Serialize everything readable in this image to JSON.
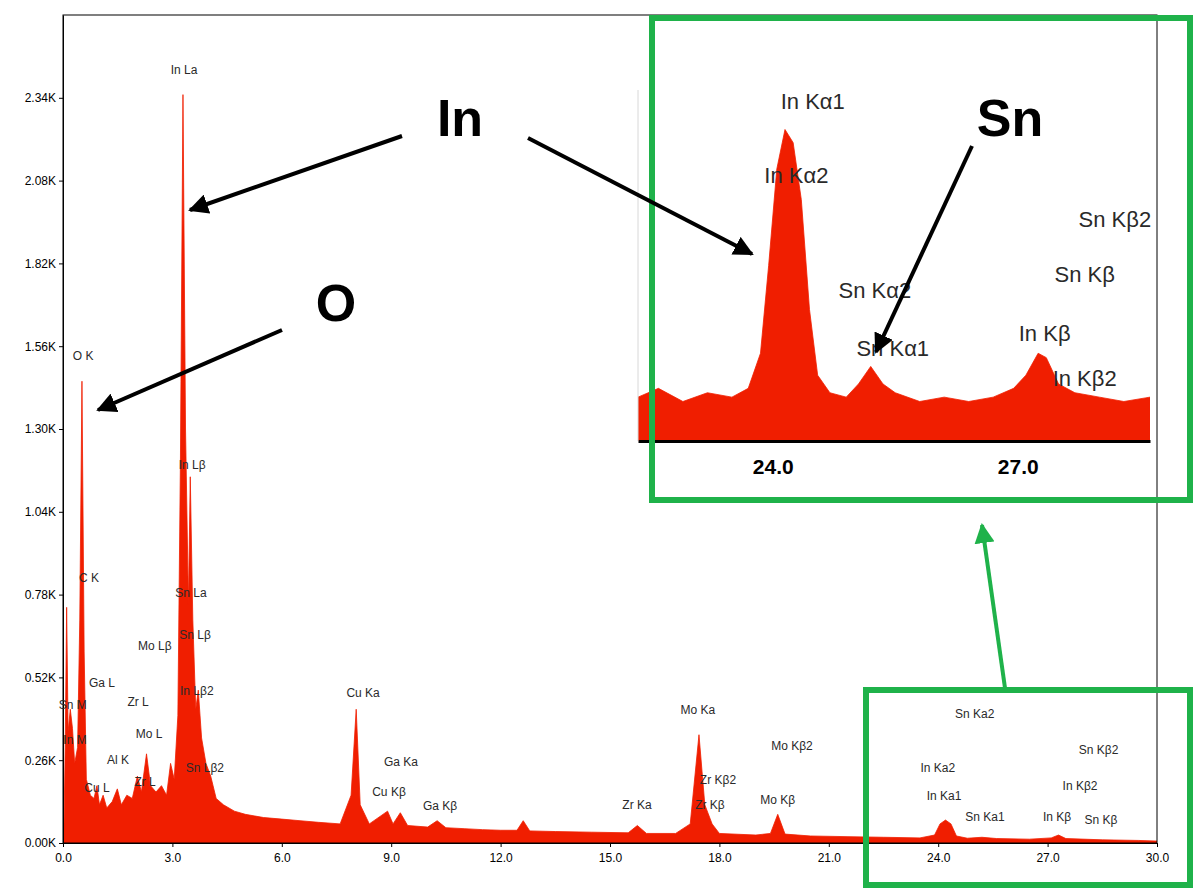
{
  "chart_data": [
    {
      "type": "area",
      "xlim": [
        0,
        30
      ],
      "ylim": [
        0,
        2600
      ],
      "xticks": [
        {
          "value": 0,
          "label": "0.0"
        },
        {
          "value": 3,
          "label": "3.0"
        },
        {
          "value": 6,
          "label": "6.0"
        },
        {
          "value": 9,
          "label": "9.0"
        },
        {
          "value": 12,
          "label": "12.0"
        },
        {
          "value": 15,
          "label": "15.0"
        },
        {
          "value": 18,
          "label": "18.0"
        },
        {
          "value": 21,
          "label": "21.0"
        },
        {
          "value": 24,
          "label": "24.0"
        },
        {
          "value": 27,
          "label": "27.0"
        },
        {
          "value": 30,
          "label": "30.0"
        }
      ],
      "yticks": [
        {
          "value": 0,
          "label": "0.00K"
        },
        {
          "value": 260,
          "label": "0.26K"
        },
        {
          "value": 520,
          "label": "0.52K"
        },
        {
          "value": 780,
          "label": "0.78K"
        },
        {
          "value": 1040,
          "label": "1.04K"
        },
        {
          "value": 1300,
          "label": "1.30K"
        },
        {
          "value": 1560,
          "label": "1.56K"
        },
        {
          "value": 1820,
          "label": "1.82K"
        },
        {
          "value": 2080,
          "label": "2.08K"
        },
        {
          "value": 2340,
          "label": "2.34K"
        }
      ],
      "x": [
        0.02,
        0.06,
        0.1,
        0.14,
        0.2,
        0.26,
        0.32,
        0.4,
        0.46,
        0.52,
        0.58,
        0.64,
        0.75,
        0.85,
        0.93,
        1.0,
        1.1,
        1.2,
        1.35,
        1.49,
        1.6,
        1.75,
        1.9,
        2.04,
        2.15,
        2.29,
        2.4,
        2.55,
        2.7,
        2.84,
        2.95,
        3.05,
        3.15,
        3.22,
        3.29,
        3.36,
        3.44,
        3.49,
        3.56,
        3.64,
        3.71,
        3.8,
        3.92,
        4.05,
        4.2,
        4.4,
        4.7,
        5.0,
        5.5,
        6.0,
        6.5,
        7.0,
        7.6,
        7.9,
        8.04,
        8.15,
        8.4,
        8.9,
        9.05,
        9.25,
        9.45,
        10.0,
        10.26,
        10.5,
        11.0,
        11.5,
        12.0,
        12.45,
        12.62,
        12.8,
        13.5,
        14.5,
        15.5,
        15.75,
        16.0,
        16.8,
        17.2,
        17.44,
        17.6,
        17.8,
        18.0,
        19.0,
        19.4,
        19.6,
        19.8,
        20.5,
        21.5,
        22.5,
        23.5,
        23.9,
        24.05,
        24.2,
        24.35,
        24.5,
        24.8,
        25.2,
        25.6,
        26.5,
        27.1,
        27.3,
        27.5,
        28.5,
        29.5,
        30.0
      ],
      "series": [
        {
          "color": "#f01e00",
          "values": [
            0,
            300,
            740,
            350,
            420,
            360,
            250,
            300,
            700,
            1450,
            600,
            200,
            150,
            140,
            180,
            120,
            150,
            110,
            130,
            170,
            120,
            150,
            140,
            210,
            160,
            280,
            180,
            160,
            180,
            150,
            250,
            200,
            400,
            1200,
            2350,
            1300,
            750,
            1150,
            700,
            420,
            480,
            330,
            250,
            210,
            140,
            120,
            100,
            90,
            80,
            75,
            70,
            65,
            60,
            150,
            420,
            120,
            60,
            100,
            60,
            95,
            55,
            50,
            70,
            48,
            45,
            42,
            40,
            40,
            70,
            38,
            36,
            34,
            32,
            55,
            30,
            30,
            60,
            340,
            120,
            60,
            30,
            25,
            30,
            90,
            28,
            22,
            20,
            18,
            16,
            25,
            60,
            72,
            60,
            22,
            15,
            18,
            14,
            12,
            16,
            25,
            14,
            10,
            8,
            6
          ]
        }
      ],
      "annotations": [
        {
          "text": "In La",
          "x": 3.32,
          "y": 2424
        },
        {
          "text": "O K",
          "x": 0.55,
          "y": 1527
        },
        {
          "text": "In Lβ",
          "x": 3.54,
          "y": 1185
        },
        {
          "text": "C K",
          "x": 0.71,
          "y": 831
        },
        {
          "text": "Sn La",
          "x": 3.51,
          "y": 781
        },
        {
          "text": "Sn Lβ",
          "x": 3.62,
          "y": 649
        },
        {
          "text": "Mo Lβ",
          "x": 2.52,
          "y": 615
        },
        {
          "text": "Ga L",
          "x": 1.07,
          "y": 499
        },
        {
          "text": "Zr L",
          "x": 2.06,
          "y": 439
        },
        {
          "text": "In Lβ2",
          "x": 3.67,
          "y": 474
        },
        {
          "text": "Sn M",
          "x": 0.27,
          "y": 430
        },
        {
          "text": "Mo L",
          "x": 2.36,
          "y": 339
        },
        {
          "text": "In M",
          "x": 0.33,
          "y": 320
        },
        {
          "text": "Al K",
          "x": 1.51,
          "y": 257
        },
        {
          "text": "Sn Lβ2",
          "x": 3.89,
          "y": 232
        },
        {
          "text": "Cu L",
          "x": 0.93,
          "y": 169
        },
        {
          "text": "Zr L",
          "x": 2.25,
          "y": 188
        },
        {
          "text": "Cu Ka",
          "x": 8.23,
          "y": 467
        },
        {
          "text": "Ga Ka",
          "x": 9.27,
          "y": 251
        },
        {
          "text": "Cu Kβ",
          "x": 8.94,
          "y": 157
        },
        {
          "text": "Ga Kβ",
          "x": 10.34,
          "y": 113
        },
        {
          "text": "Mo Ka",
          "x": 17.41,
          "y": 414
        },
        {
          "text": "Zr Kβ2",
          "x": 17.96,
          "y": 194
        },
        {
          "text": "Zr Kβ",
          "x": 17.74,
          "y": 116
        },
        {
          "text": "Zr Ka",
          "x": 15.74,
          "y": 116
        },
        {
          "text": "Mo Kβ2",
          "x": 19.99,
          "y": 301
        },
        {
          "text": "Mo Kβ",
          "x": 19.6,
          "y": 132
        },
        {
          "text": "Sn Ka2",
          "x": 25.0,
          "y": 401
        },
        {
          "text": "In Ka2",
          "x": 23.99,
          "y": 232
        },
        {
          "text": "In Ka1",
          "x": 24.16,
          "y": 144
        },
        {
          "text": "Sn Ka1",
          "x": 25.28,
          "y": 78
        },
        {
          "text": "In Kβ",
          "x": 27.26,
          "y": 78
        },
        {
          "text": "Sn Kβ2",
          "x": 28.4,
          "y": 288
        },
        {
          "text": "In Kβ2",
          "x": 27.89,
          "y": 176
        },
        {
          "text": "Sn Kβ",
          "x": 28.46,
          "y": 69
        }
      ],
      "callouts": [
        "In",
        "O",
        "Sn"
      ]
    },
    {
      "type": "area",
      "xlim": [
        22.35,
        28.62
      ],
      "ylim": [
        0,
        80
      ],
      "xticks": [
        {
          "value": 24,
          "label": "24.0"
        },
        {
          "value": 27,
          "label": "27.0"
        }
      ],
      "tick_labels": "x",
      "x": [
        22.35,
        22.6,
        22.9,
        23.2,
        23.5,
        23.7,
        23.85,
        23.95,
        24.05,
        24.15,
        24.25,
        24.35,
        24.45,
        24.55,
        24.7,
        24.9,
        25.05,
        25.2,
        25.35,
        25.5,
        25.8,
        26.1,
        26.4,
        26.7,
        26.95,
        27.1,
        27.25,
        27.35,
        27.5,
        27.7,
        28.0,
        28.3,
        28.62
      ],
      "series": [
        {
          "color": "#f01e00",
          "values": [
            10,
            12,
            9,
            11,
            10,
            12,
            20,
            40,
            62,
            71,
            68,
            55,
            30,
            15,
            11,
            10,
            13,
            17,
            13,
            11,
            9,
            10,
            9,
            10,
            12,
            15,
            20,
            19,
            13,
            11,
            10,
            9,
            10
          ]
        }
      ],
      "annotations": [
        {
          "text": "In Kα1",
          "x": 24.49,
          "y": 77.0
        },
        {
          "text": "In Kα2",
          "x": 24.29,
          "y": 60.2
        },
        {
          "text": "Sn Kα2",
          "x": 25.25,
          "y": 34.0
        },
        {
          "text": "Sn Kα1",
          "x": 25.47,
          "y": 20.7
        },
        {
          "text": "In Kβ",
          "x": 27.33,
          "y": 24.2
        },
        {
          "text": "In Kβ2",
          "x": 27.82,
          "y": 13.9
        },
        {
          "text": "Sn Kβ2",
          "x": 28.19,
          "y": 50.1
        },
        {
          "text": "Sn Kβ",
          "x": 27.82,
          "y": 37.6
        }
      ]
    }
  ]
}
